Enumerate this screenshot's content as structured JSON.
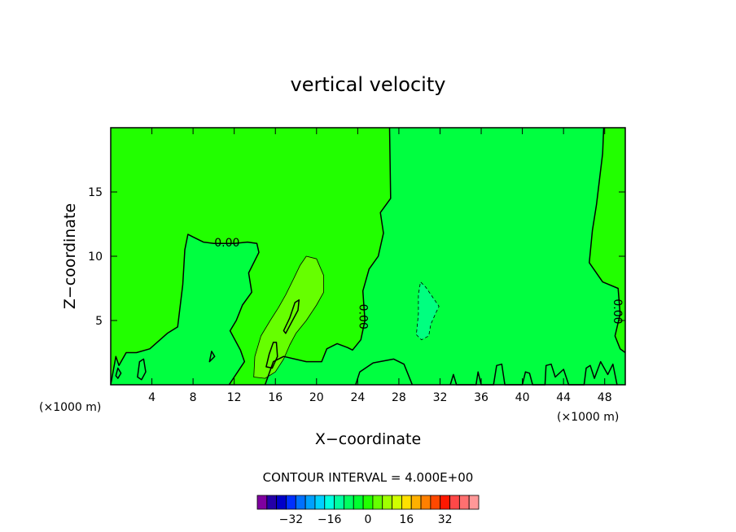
{
  "chart_data": {
    "type": "contour",
    "title": "vertical velocity",
    "xlabel": "X−coordinate",
    "ylabel": "Z−coordinate",
    "x_unit_left": "(×1000 m)",
    "x_unit_right": "(×1000 m)",
    "xlim": [
      0,
      50
    ],
    "ylim": [
      0,
      20
    ],
    "x_ticks": [
      {
        "value": 4,
        "label": "4"
      },
      {
        "value": 8,
        "label": "8"
      },
      {
        "value": 12,
        "label": "12"
      },
      {
        "value": 16,
        "label": "16"
      },
      {
        "value": 20,
        "label": "20"
      },
      {
        "value": 24,
        "label": "24"
      },
      {
        "value": 28,
        "label": "28"
      },
      {
        "value": 32,
        "label": "32"
      },
      {
        "value": 36,
        "label": "36"
      },
      {
        "value": 40,
        "label": "40"
      },
      {
        "value": 44,
        "label": "44"
      },
      {
        "value": 48,
        "label": "48"
      }
    ],
    "y_ticks": [
      {
        "value": 5,
        "label": "5"
      },
      {
        "value": 10,
        "label": "10"
      },
      {
        "value": 15,
        "label": "15"
      }
    ],
    "contour_interval_text": "CONTOUR INTERVAL = 4.000E+00",
    "contour_labels": [
      {
        "text": "0.00",
        "x": 11.3,
        "z": 11.0,
        "rotation": 0
      },
      {
        "text": "0.00",
        "x": 24.5,
        "z": 5.3,
        "rotation": 90
      },
      {
        "text": "0.00",
        "x": 49.2,
        "z": 5.7,
        "rotation": 90
      }
    ],
    "regions": [
      {
        "name": "background",
        "level": 0,
        "color": "#22ff00",
        "points": [
          [
            0,
            0
          ],
          [
            50,
            0
          ],
          [
            50,
            20
          ],
          [
            0,
            20
          ]
        ]
      },
      {
        "name": "main-zero-region",
        "level": 0,
        "color": "#00ff40",
        "points": [
          [
            0,
            0
          ],
          [
            0.5,
            2.2
          ],
          [
            0.8,
            1.5
          ],
          [
            1.5,
            2.5
          ],
          [
            2.5,
            2.5
          ],
          [
            3.8,
            2.8
          ],
          [
            5.5,
            4.0
          ],
          [
            6.5,
            4.5
          ],
          [
            7,
            7.8
          ],
          [
            7.2,
            10.5
          ],
          [
            7.5,
            11.7
          ],
          [
            8,
            11.5
          ],
          [
            9,
            11.1
          ],
          [
            10,
            11.0
          ],
          [
            11,
            11.0
          ],
          [
            12,
            11.0
          ],
          [
            13.3,
            11.1
          ],
          [
            14.2,
            11.0
          ],
          [
            14.4,
            10.3
          ],
          [
            13.4,
            8.7
          ],
          [
            13.7,
            7.2
          ],
          [
            12.8,
            6.2
          ],
          [
            12.2,
            5.0
          ],
          [
            11.6,
            4.2
          ],
          [
            12.6,
            2.7
          ],
          [
            13,
            1.8
          ],
          [
            12,
            0.6
          ],
          [
            11.5,
            0
          ]
        ]
      },
      {
        "name": "right-zero-region",
        "level": 0,
        "color": "#00ff40",
        "points": [
          [
            15,
            0
          ],
          [
            15.8,
            1.8
          ],
          [
            16.8,
            2.2
          ],
          [
            19,
            1.8
          ],
          [
            20.5,
            1.8
          ],
          [
            21,
            2.8
          ],
          [
            22,
            3.2
          ],
          [
            23,
            2.9
          ],
          [
            23.5,
            2.7
          ],
          [
            24.3,
            3.5
          ],
          [
            24.7,
            5.0
          ],
          [
            24.5,
            7.3
          ],
          [
            25.1,
            9.0
          ],
          [
            26,
            10.0
          ],
          [
            26.5,
            11.8
          ],
          [
            26.2,
            13.4
          ],
          [
            27.2,
            14.5
          ],
          [
            27.1,
            20
          ],
          [
            47.9,
            20
          ],
          [
            47.8,
            18.0
          ],
          [
            47.2,
            14.0
          ],
          [
            46.8,
            12.0
          ],
          [
            46.5,
            9.5
          ],
          [
            47.8,
            8.0
          ],
          [
            49.3,
            7.5
          ],
          [
            49.5,
            5.5
          ],
          [
            49.0,
            3.8
          ],
          [
            49.5,
            2.8
          ],
          [
            50,
            2.5
          ],
          [
            50,
            0
          ]
        ]
      },
      {
        "name": "small-positive-blob",
        "level": 4,
        "color": "#66ff00",
        "points": [
          [
            13.9,
            0.6
          ],
          [
            14.0,
            2.2
          ],
          [
            14.6,
            3.8
          ],
          [
            15.5,
            5.0
          ],
          [
            16.3,
            6.0
          ],
          [
            17.0,
            7.0
          ],
          [
            17.8,
            8.3
          ],
          [
            18.4,
            9.3
          ],
          [
            19.0,
            10.0
          ],
          [
            20.0,
            9.8
          ],
          [
            20.7,
            8.5
          ],
          [
            20.7,
            7.2
          ],
          [
            20.0,
            6.2
          ],
          [
            19.0,
            5.0
          ],
          [
            18.0,
            4.0
          ],
          [
            17.4,
            3.1
          ],
          [
            16.8,
            2.0
          ],
          [
            16.0,
            1.0
          ],
          [
            15.0,
            0.5
          ]
        ]
      },
      {
        "name": "negative-blob",
        "level": -4,
        "color": "#00ff80",
        "points": [
          [
            29.7,
            3.9
          ],
          [
            30.2,
            3.5
          ],
          [
            30.9,
            3.8
          ],
          [
            31.1,
            4.7
          ],
          [
            31.6,
            5.6
          ],
          [
            31.9,
            6.1
          ],
          [
            31.3,
            6.8
          ],
          [
            30.6,
            7.6
          ],
          [
            30.1,
            8.0
          ],
          [
            29.9,
            7.0
          ],
          [
            29.9,
            5.5
          ]
        ]
      }
    ],
    "contours": [
      {
        "name": "zero-contour-left",
        "level": 0,
        "closed": false,
        "points": [
          [
            0,
            0
          ],
          [
            0.5,
            2.2
          ],
          [
            0.8,
            1.5
          ],
          [
            1.5,
            2.5
          ],
          [
            2.5,
            2.5
          ],
          [
            3.8,
            2.8
          ],
          [
            5.5,
            4.0
          ],
          [
            6.5,
            4.5
          ],
          [
            7,
            7.8
          ],
          [
            7.2,
            10.5
          ],
          [
            7.5,
            11.7
          ],
          [
            8,
            11.5
          ],
          [
            9,
            11.1
          ],
          [
            10,
            11.0
          ],
          [
            11,
            11.0
          ],
          [
            12,
            11.0
          ],
          [
            13.3,
            11.1
          ],
          [
            14.2,
            11.0
          ],
          [
            14.4,
            10.3
          ],
          [
            13.4,
            8.7
          ],
          [
            13.7,
            7.2
          ],
          [
            12.8,
            6.2
          ],
          [
            12.2,
            5.0
          ],
          [
            11.6,
            4.2
          ],
          [
            12.6,
            2.7
          ],
          [
            13,
            1.8
          ],
          [
            12,
            0.6
          ],
          [
            11.5,
            0
          ]
        ]
      },
      {
        "name": "zero-contour-middle",
        "level": 0,
        "closed": false,
        "points": [
          [
            15,
            0
          ],
          [
            15.8,
            1.8
          ],
          [
            16.8,
            2.2
          ],
          [
            19,
            1.8
          ],
          [
            20.5,
            1.8
          ],
          [
            21,
            2.8
          ],
          [
            22,
            3.2
          ],
          [
            23,
            2.9
          ],
          [
            23.5,
            2.7
          ],
          [
            24.3,
            3.5
          ],
          [
            24.7,
            5.0
          ],
          [
            24.5,
            7.3
          ],
          [
            25.1,
            9.0
          ],
          [
            26,
            10.0
          ],
          [
            26.5,
            11.8
          ],
          [
            26.2,
            13.4
          ],
          [
            27.2,
            14.5
          ],
          [
            27.1,
            20
          ]
        ]
      },
      {
        "name": "zero-contour-right",
        "level": 0,
        "closed": false,
        "points": [
          [
            47.9,
            20
          ],
          [
            47.8,
            18.0
          ],
          [
            47.2,
            14.0
          ],
          [
            46.8,
            12.0
          ],
          [
            46.5,
            9.5
          ],
          [
            47.8,
            8.0
          ],
          [
            49.3,
            7.5
          ],
          [
            49.5,
            5.5
          ],
          [
            49.0,
            3.8
          ],
          [
            49.5,
            2.8
          ],
          [
            50,
            2.5
          ]
        ]
      },
      {
        "name": "zero-contour-bottom",
        "level": 0,
        "closed": false,
        "points": [
          [
            23.8,
            0
          ],
          [
            24.2,
            1.0
          ],
          [
            25.5,
            1.7
          ],
          [
            27.5,
            2.0
          ],
          [
            28.5,
            1.6
          ],
          [
            29.3,
            0
          ]
        ]
      },
      {
        "name": "contour-plus4",
        "level": 4,
        "closed": true,
        "points": [
          [
            13.9,
            0.6
          ],
          [
            14.0,
            2.2
          ],
          [
            14.6,
            3.8
          ],
          [
            15.5,
            5.0
          ],
          [
            16.3,
            6.0
          ],
          [
            17.0,
            7.0
          ],
          [
            17.8,
            8.3
          ],
          [
            18.4,
            9.3
          ],
          [
            19.0,
            10.0
          ],
          [
            20.0,
            9.8
          ],
          [
            20.7,
            8.5
          ],
          [
            20.7,
            7.2
          ],
          [
            20.0,
            6.2
          ],
          [
            19.0,
            5.0
          ],
          [
            18.0,
            4.0
          ],
          [
            17.4,
            3.1
          ],
          [
            16.8,
            2.0
          ],
          [
            16.0,
            1.0
          ],
          [
            15.0,
            0.5
          ]
        ]
      },
      {
        "name": "contour-minus4",
        "level": -4,
        "closed": true,
        "dashed": true,
        "points": [
          [
            29.7,
            3.9
          ],
          [
            30.2,
            3.5
          ],
          [
            30.9,
            3.8
          ],
          [
            31.1,
            4.7
          ],
          [
            31.6,
            5.6
          ],
          [
            31.9,
            6.1
          ],
          [
            31.3,
            6.8
          ],
          [
            30.6,
            7.6
          ],
          [
            30.1,
            8.0
          ],
          [
            29.9,
            7.0
          ],
          [
            29.9,
            5.5
          ]
        ]
      },
      {
        "name": "inner-loop-1",
        "level": 0,
        "closed": true,
        "points": [
          [
            15.1,
            1.4
          ],
          [
            15.4,
            2.4
          ],
          [
            15.8,
            3.3
          ],
          [
            16.1,
            3.3
          ],
          [
            16.2,
            2.2
          ],
          [
            15.7,
            1.3
          ]
        ]
      },
      {
        "name": "inner-loop-2",
        "level": 0,
        "closed": true,
        "points": [
          [
            16.8,
            4.2
          ],
          [
            17.4,
            5.2
          ],
          [
            17.9,
            6.4
          ],
          [
            18.3,
            6.6
          ],
          [
            18.2,
            5.8
          ],
          [
            17.4,
            4.6
          ],
          [
            17.0,
            4.0
          ]
        ]
      },
      {
        "name": "inner-loop-3",
        "level": 0,
        "closed": true,
        "points": [
          [
            2.6,
            0.6
          ],
          [
            2.8,
            1.8
          ],
          [
            3.2,
            2.0
          ],
          [
            3.4,
            1.0
          ],
          [
            3.0,
            0.4
          ]
        ]
      },
      {
        "name": "inner-loop-4",
        "level": 0,
        "closed": true,
        "points": [
          [
            0.5,
            0.7
          ],
          [
            0.7,
            1.3
          ],
          [
            1.0,
            0.9
          ],
          [
            0.7,
            0.5
          ]
        ]
      },
      {
        "name": "inner-loop-5",
        "level": 0,
        "closed": true,
        "points": [
          [
            9.6,
            1.8
          ],
          [
            9.8,
            2.6
          ],
          [
            10.1,
            2.2
          ]
        ]
      },
      {
        "name": "bottom-ripples",
        "level": 0,
        "closed": false,
        "points": [
          [
            33,
            0
          ],
          [
            33.3,
            0.8
          ],
          [
            33.6,
            0
          ],
          [
            35.5,
            0
          ],
          [
            35.7,
            1.0
          ],
          [
            36,
            0
          ],
          [
            37.2,
            0
          ],
          [
            37.5,
            1.5
          ],
          [
            38,
            1.6
          ],
          [
            38.3,
            0
          ],
          [
            40,
            0
          ],
          [
            40.3,
            1.0
          ],
          [
            40.7,
            0.9
          ],
          [
            41,
            0
          ],
          [
            42.2,
            0
          ],
          [
            42.3,
            1.5
          ],
          [
            42.8,
            1.6
          ],
          [
            43.2,
            0.6
          ],
          [
            44,
            1.2
          ],
          [
            44.5,
            0
          ],
          [
            46,
            0
          ],
          [
            46.2,
            1.3
          ],
          [
            46.6,
            1.5
          ],
          [
            47,
            0.5
          ],
          [
            47.6,
            1.8
          ],
          [
            48.3,
            0.8
          ],
          [
            48.8,
            1.6
          ],
          [
            49.2,
            0
          ]
        ]
      }
    ],
    "colorbar": {
      "colors": [
        "#7f00a0",
        "#2400a8",
        "#0000c8",
        "#0030ff",
        "#0070ff",
        "#00a0ff",
        "#00d0ff",
        "#00ffe0",
        "#00ffa0",
        "#00ff60",
        "#00ff30",
        "#22ff00",
        "#66ff00",
        "#a0ff00",
        "#d0ff00",
        "#ffe000",
        "#ffb000",
        "#ff8000",
        "#ff4800",
        "#ff1800",
        "#ff4848",
        "#ff7070",
        "#ff9898"
      ],
      "labels": [
        {
          "value": -32,
          "label": "−32"
        },
        {
          "value": -16,
          "label": "−16"
        },
        {
          "value": 0,
          "label": "0"
        },
        {
          "value": 16,
          "label": "16"
        },
        {
          "value": 32,
          "label": "32"
        }
      ],
      "range": [
        -46,
        46
      ]
    }
  }
}
